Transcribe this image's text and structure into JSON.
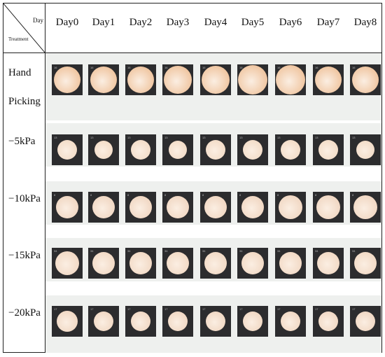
{
  "header": {
    "corner_day": "Day",
    "corner_treatment": "Treatment",
    "days": [
      "Day0",
      "Day1",
      "Day2",
      "Day3",
      "Day4",
      "Day5",
      "Day6",
      "Day7",
      "Day8"
    ]
  },
  "rows": [
    {
      "label_lines": [
        "Hand",
        "Picking"
      ],
      "tile_numbers": [
        "16",
        "16",
        "16",
        "16",
        "16",
        "16",
        "16",
        "16",
        "16"
      ],
      "sample_color": "#f0c7a3"
    },
    {
      "label_lines": [
        "−5kPa"
      ],
      "tile_numbers": [
        "13",
        "13",
        "13",
        "13",
        "13",
        "13",
        "13",
        "13",
        "13"
      ],
      "sample_color": "#f3ddc9"
    },
    {
      "label_lines": [
        "−10kPa"
      ],
      "tile_numbers": [
        "8",
        "8",
        "8",
        "8",
        "8",
        "8",
        "8",
        "8",
        "8"
      ],
      "sample_color": "#f1d8c4"
    },
    {
      "label_lines": [
        "−15kPa"
      ],
      "tile_numbers": [
        "34",
        "34",
        "34",
        "34",
        "34",
        "34",
        "34",
        "34",
        "34"
      ],
      "sample_color": "#f2dac6"
    },
    {
      "label_lines": [
        "−20kPa"
      ],
      "tile_numbers": [
        "17",
        "17",
        "17",
        "17",
        "17",
        "17",
        "17",
        "17",
        "17"
      ],
      "sample_color": "#f1d9c5"
    }
  ],
  "colors": {
    "tile_background": "#2c2c2e",
    "row_band": "#eef0ee",
    "grid_line": "#222222"
  }
}
